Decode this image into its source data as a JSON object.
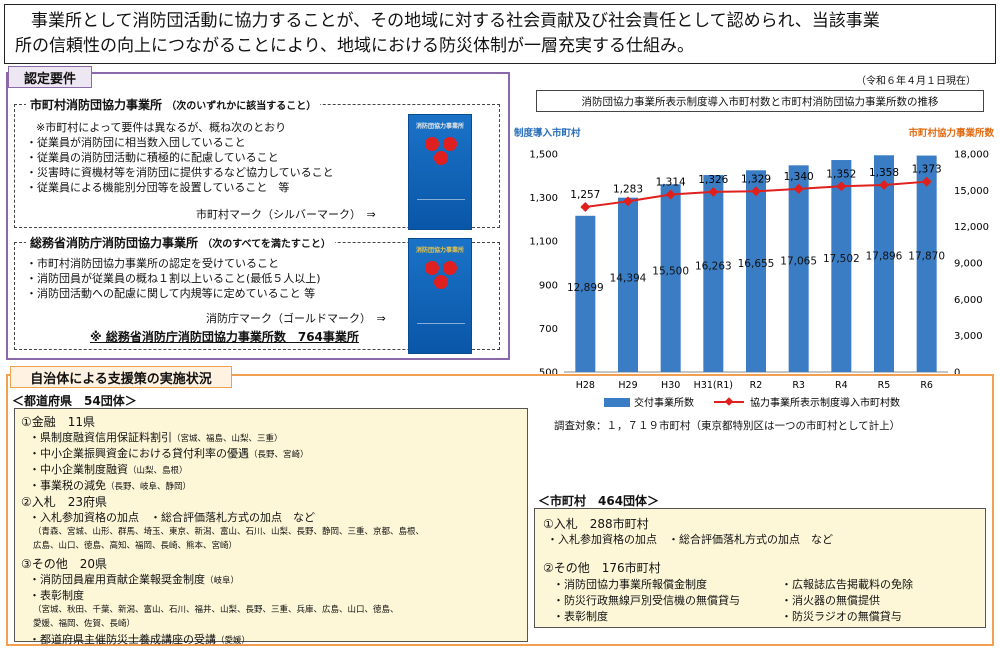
{
  "intro": {
    "line1": "事業所として消防団活動に協力することが、その地域に対する社会貢献及び社会責任として認められ、当該事業",
    "line2": "所の信頼性の向上につながることにより、地域における防災体制が一層充実する仕組み。"
  },
  "requirements": {
    "tab": "認定要件",
    "municipal": {
      "title": "市町村消防団協力事業所",
      "title_note": "（次のいずれかに該当すること）",
      "lines": [
        "※市町村によって要件は異なるが、概ね次のとおり",
        "・従業員が消防団に相当数入団していること",
        "・従業員の消防団活動に積極的に配慮していること",
        "・災害時に資機材等を消防団に提供するなど協力していること",
        "・従業員による機能別分団等を設置していること　等"
      ],
      "mark": "市町村マーク（シルバーマーク）　⇒",
      "badge_text": "消防団協力事業所"
    },
    "fdma": {
      "title": "総務省消防庁消防団協力事業所",
      "title_note": "（次のすべてを満たすこと）",
      "lines": [
        "・市町村消防団協力事業所の認定を受けていること",
        "・消防団員が従業員の概ね１割以上いること(最低５人以上)",
        "・消防団活動への配慮に関して内規等に定めていること 等"
      ],
      "mark": "消防庁マーク（ゴールドマーク）　⇒",
      "badge_text": "消防団協力事業所",
      "count": "※ 総務省消防庁消防団協力事業所数　764事業所"
    }
  },
  "chart_meta": {
    "date_note": "（令和６年４月１日現在）",
    "title": "消防団協力事業所表示制度導入市町村数と市町村消防団協力事業所数の推移",
    "survey": "調査対象：１，７１９市町村（東京都特別区は一つの市町村として計上）"
  },
  "chart_data": {
    "type": "bar",
    "categories": [
      "H28",
      "H29",
      "H30",
      "H31(R1)",
      "R2",
      "R3",
      "R4",
      "R5",
      "R6"
    ],
    "series": [
      {
        "name": "交付事業所数",
        "type": "bar",
        "axis": "right",
        "values": [
          12899,
          14394,
          15500,
          16263,
          16655,
          17065,
          17502,
          17896,
          17870
        ]
      },
      {
        "name": "協力事業所表示制度導入市町村数",
        "type": "line",
        "axis": "left",
        "values": [
          1257,
          1283,
          1314,
          1326,
          1329,
          1340,
          1352,
          1358,
          1373
        ]
      }
    ],
    "bar_labels": [
      "12,899",
      "14,394",
      "15,500",
      "16,263",
      "16,655",
      "17,065",
      "17,502",
      "17,896",
      "17,870"
    ],
    "line_labels": [
      "1,257",
      "1,283",
      "1,314",
      "1,326",
      "1,329",
      "1,340",
      "1,352",
      "1,358",
      "1,373"
    ],
    "ylabel_left": "制度導入市町村",
    "ylabel_right": "市町村協力事業所数",
    "ylim_left": [
      500,
      1500
    ],
    "ylim_right": [
      0,
      18000
    ],
    "yticks_left": [
      "1,500",
      "1,300",
      "1,100",
      "900",
      "700",
      "500"
    ],
    "yticks_right": [
      "18,000",
      "15,000",
      "12,000",
      "9,000",
      "6,000",
      "3,000",
      "0"
    ],
    "legend_position": "bottom",
    "colors": {
      "bar": "#3b7dc4",
      "line": "#e0201c"
    }
  },
  "support": {
    "tab": "自治体による支援策の実施状況",
    "pref": {
      "head": "＜都道府県　54団体＞",
      "lines": [
        {
          "t": "①金融　11県",
          "cls": "h"
        },
        {
          "t": "・県制度融資信用保証料割引",
          "p": "（宮城、福島、山梨、三重）"
        },
        {
          "t": "・中小企業振興資金における貸付利率の優遇",
          "p": "（長野、宮崎）"
        },
        {
          "t": "・中小企業制度融資",
          "p": "（山梨、島根）"
        },
        {
          "t": "・事業税の減免",
          "p": "（長野、岐阜、静岡）"
        },
        {
          "t": "②入札　23府県",
          "cls": "h"
        },
        {
          "t": "・入札参加資格の加点　・総合評価落札方式の加点　など"
        },
        {
          "t": "（青森、宮城、山形、群馬、埼玉、東京、新潟、富山、石川、山梨、長野、静岡、三重、京都、島根、",
          "cls": "small"
        },
        {
          "t": "広島、山口、徳島、高知、福岡、長崎、熊本、宮崎）",
          "cls": "small"
        },
        {
          "t": "③その他　20県",
          "cls": "h"
        },
        {
          "t": "・消防団員雇用貢献企業報奨金制度",
          "p": "（岐阜）"
        },
        {
          "t": "・表彰制度"
        },
        {
          "t": "（宮城、秋田、千葉、新潟、富山、石川、福井、山梨、長野、三重、兵庫、広島、山口、徳島、",
          "cls": "small"
        },
        {
          "t": "愛媛、福岡、佐賀、長崎）",
          "cls": "small"
        },
        {
          "t": "・都道府県主催防災士養成講座の受講",
          "p": "（愛媛）"
        }
      ]
    },
    "muni": {
      "head": "＜市町村　464団体＞",
      "bid_head": "①入札　288市町村",
      "bid_line": "・入札参加資格の加点　・総合評価落札方式の加点　など",
      "other_head": "②その他　176市町村",
      "left_items": [
        "・消防団協力事業所報償金制度",
        "・防災行政無線戸別受信機の無償貸与",
        "・表彰制度"
      ],
      "right_items": [
        "・広報誌広告掲載料の免除",
        "・消火器の無償提供",
        "・防災ラジオの無償貸与"
      ]
    }
  }
}
